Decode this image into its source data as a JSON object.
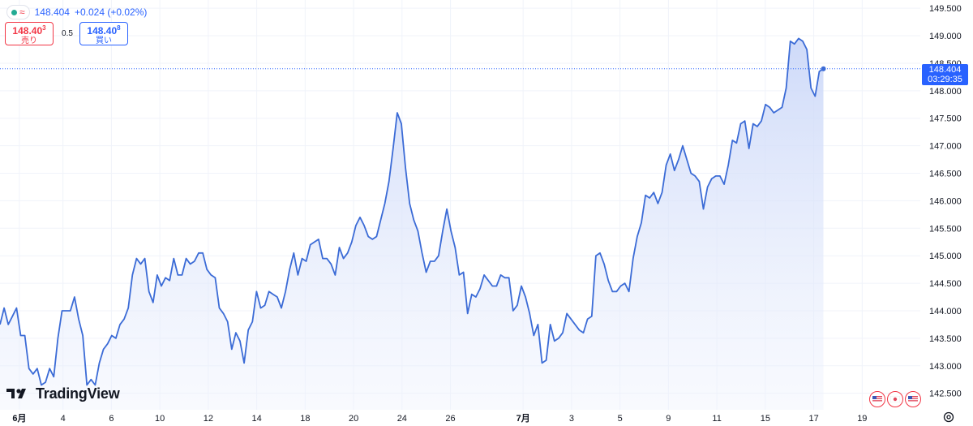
{
  "legend": {
    "price": "148.404",
    "change": "+0.024 (+0.02%)"
  },
  "trade": {
    "sell_price": "148.40",
    "sell_price_sup": "3",
    "sell_label": "売り",
    "spread": "0.5",
    "buy_price": "148.40",
    "buy_price_sup": "8",
    "buy_label": "買い"
  },
  "current_price": {
    "value": "148.404",
    "countdown": "03:29:35",
    "color": "#2962ff"
  },
  "logo": {
    "text": "TradingView"
  },
  "icons": [
    "indicator-dot-icon",
    "wave-icon",
    "tradingview-logo-icon",
    "us-flag-icon",
    "jp-flag-icon",
    "settings-icon"
  ],
  "chart_data": {
    "type": "area",
    "line_color": "#3b6bd6",
    "fill_color": "#dfe6fb",
    "grid": true,
    "ylim": [
      142.2,
      149.65
    ],
    "xlim": [
      0,
      190
    ],
    "y_ticks": [
      "142.500",
      "143.000",
      "143.500",
      "144.000",
      "144.500",
      "145.000",
      "145.500",
      "146.000",
      "146.500",
      "147.000",
      "147.500",
      "148.000",
      "148.500",
      "149.000",
      "149.500"
    ],
    "x_ticks": [
      {
        "label": "6月",
        "x": 4,
        "bold": true
      },
      {
        "label": "4",
        "x": 13
      },
      {
        "label": "6",
        "x": 23
      },
      {
        "label": "10",
        "x": 33
      },
      {
        "label": "12",
        "x": 43
      },
      {
        "label": "14",
        "x": 53
      },
      {
        "label": "18",
        "x": 63
      },
      {
        "label": "20",
        "x": 73
      },
      {
        "label": "24",
        "x": 83
      },
      {
        "label": "26",
        "x": 93
      },
      {
        "label": "7月",
        "x": 108,
        "bold": true
      },
      {
        "label": "3",
        "x": 118
      },
      {
        "label": "5",
        "x": 128
      },
      {
        "label": "9",
        "x": 138
      },
      {
        "label": "11",
        "x": 148
      },
      {
        "label": "15",
        "x": 158
      },
      {
        "label": "17",
        "x": 168
      },
      {
        "label": "19",
        "x": 178
      }
    ],
    "values": [
      143.75,
      144.05,
      143.75,
      143.9,
      144.05,
      143.55,
      143.55,
      142.95,
      142.85,
      142.95,
      142.65,
      142.7,
      142.95,
      142.8,
      143.5,
      144.0,
      144.0,
      144.0,
      144.25,
      143.85,
      143.55,
      142.65,
      142.75,
      142.65,
      143.05,
      143.3,
      143.4,
      143.55,
      143.5,
      143.75,
      143.85,
      144.05,
      144.65,
      144.95,
      144.85,
      144.95,
      144.35,
      144.15,
      144.65,
      144.45,
      144.6,
      144.55,
      144.95,
      144.65,
      144.65,
      144.95,
      144.85,
      144.9,
      145.05,
      145.05,
      144.75,
      144.65,
      144.6,
      144.05,
      143.95,
      143.8,
      143.3,
      143.6,
      143.45,
      143.05,
      143.65,
      143.8,
      144.35,
      144.05,
      144.1,
      144.35,
      144.3,
      144.25,
      144.05,
      144.35,
      144.75,
      145.05,
      144.65,
      144.95,
      144.9,
      145.2,
      145.25,
      145.3,
      144.95,
      144.95,
      144.85,
      144.65,
      145.15,
      144.95,
      145.05,
      145.25,
      145.55,
      145.7,
      145.55,
      145.35,
      145.3,
      145.35,
      145.65,
      145.95,
      146.35,
      146.95,
      147.6,
      147.4,
      146.6,
      145.95,
      145.65,
      145.45,
      145.05,
      144.7,
      144.9,
      144.9,
      145.0,
      145.45,
      145.85,
      145.45,
      145.15,
      144.65,
      144.7,
      143.95,
      144.3,
      144.25,
      144.4,
      144.65,
      144.55,
      144.45,
      144.45,
      144.65,
      144.6,
      144.6,
      144.0,
      144.1,
      144.45,
      144.25,
      143.95,
      143.55,
      143.75,
      143.05,
      143.1,
      143.75,
      143.45,
      143.5,
      143.6,
      143.95,
      143.85,
      143.75,
      143.65,
      143.6,
      143.85,
      143.9,
      145.0,
      145.05,
      144.85,
      144.55,
      144.35,
      144.35,
      144.45,
      144.5,
      144.35,
      144.95,
      145.35,
      145.6,
      146.1,
      146.05,
      146.15,
      145.95,
      146.15,
      146.65,
      146.85,
      146.55,
      146.75,
      147.0,
      146.75,
      146.5,
      146.45,
      146.35,
      145.85,
      146.25,
      146.4,
      146.45,
      146.45,
      146.3,
      146.65,
      147.1,
      147.05,
      147.4,
      147.45,
      146.95,
      147.4,
      147.35,
      147.45,
      147.75,
      147.7,
      147.6,
      147.65,
      147.7,
      148.05,
      148.9,
      148.85,
      148.95,
      148.9,
      148.75,
      148.05,
      147.9,
      148.35,
      148.4
    ]
  }
}
